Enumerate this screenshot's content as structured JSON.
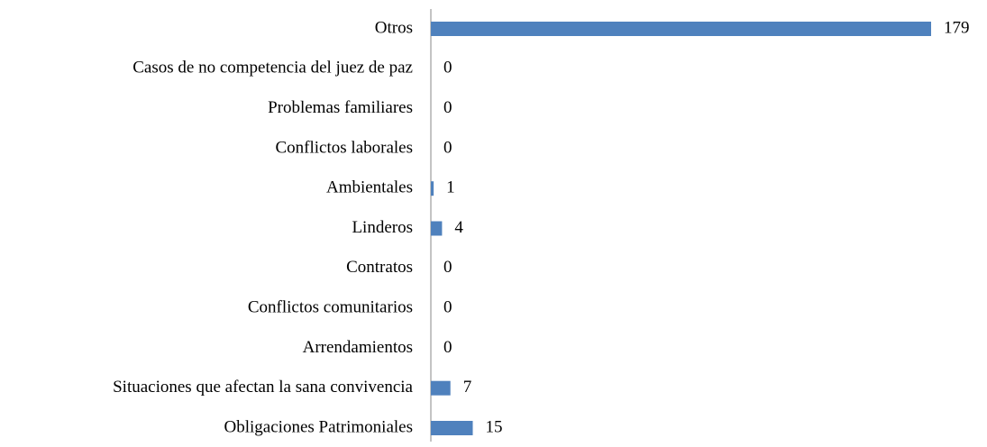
{
  "chart_data": {
    "type": "barh",
    "categories": [
      "Otros",
      "Casos de no competencia del juez de paz",
      "Problemas familiares",
      "Conflictos laborales",
      "Ambientales",
      "Linderos",
      "Contratos",
      "Conflictos comunitarios",
      "Arrendamientos",
      "Situaciones que afectan la sana convivencia",
      "Obligaciones Patrimoniales"
    ],
    "values": [
      179,
      0,
      0,
      0,
      1,
      4,
      0,
      0,
      0,
      7,
      15
    ],
    "color": "#4f81bd"
  }
}
